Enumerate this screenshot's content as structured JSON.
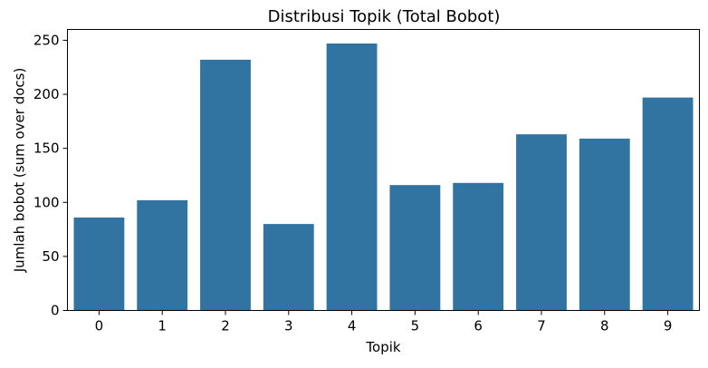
{
  "chart_data": {
    "type": "bar",
    "title": "Distribusi Topik (Total Bobot)",
    "xlabel": "Topik",
    "ylabel": "Jumlah bobot (sum over docs)",
    "categories": [
      "0",
      "1",
      "2",
      "3",
      "4",
      "5",
      "6",
      "7",
      "8",
      "9"
    ],
    "values": [
      86,
      102,
      232,
      80,
      247,
      116,
      118,
      163,
      159,
      197
    ],
    "ylim": [
      0,
      260
    ],
    "yticks": [
      "0",
      "50",
      "100",
      "150",
      "200",
      "250"
    ],
    "grid": false,
    "legend": "none",
    "bar_color": "#3274a1"
  }
}
